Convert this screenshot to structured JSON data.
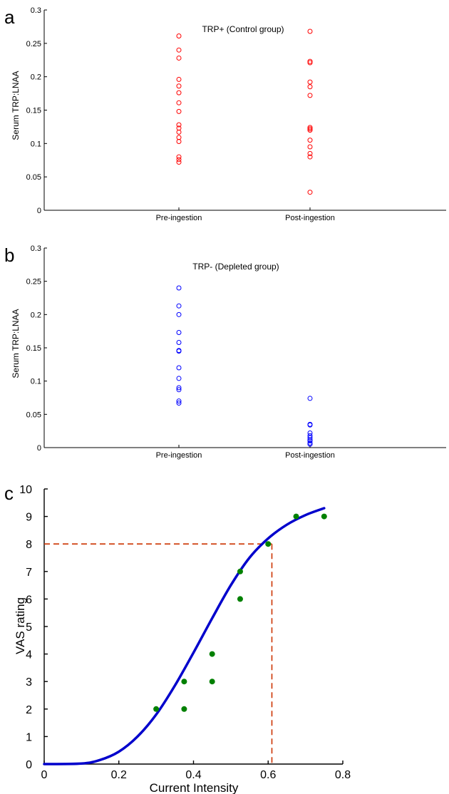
{
  "panels": [
    {
      "letter": "a"
    },
    {
      "letter": "b"
    },
    {
      "letter": "c"
    }
  ],
  "chart_data": [
    {
      "type": "scatter",
      "title": "TRP+ (Control group)",
      "xlabel": "",
      "ylabel": "Serum TRP:LNAA",
      "categories": [
        "Pre-ingestion",
        "Post-ingestion"
      ],
      "ylim": [
        0,
        0.3
      ],
      "yticks": [
        "0",
        "0.05",
        "0.1",
        "0.15",
        "0.2",
        "0.25",
        "0.3"
      ],
      "marker_color": "#ff0000",
      "series": [
        {
          "category": "Pre-ingestion",
          "values": [
            0.261,
            0.24,
            0.228,
            0.196,
            0.186,
            0.176,
            0.161,
            0.148,
            0.128,
            0.123,
            0.117,
            0.109,
            0.103,
            0.08,
            0.076,
            0.072
          ]
        },
        {
          "category": "Post-ingestion",
          "values": [
            0.268,
            0.223,
            0.221,
            0.192,
            0.185,
            0.172,
            0.124,
            0.122,
            0.12,
            0.105,
            0.095,
            0.085,
            0.08,
            0.027
          ]
        }
      ]
    },
    {
      "type": "scatter",
      "title": "TRP- (Depleted group)",
      "xlabel": "",
      "ylabel": "Serum TRP:LNAA",
      "categories": [
        "Pre-ingestion",
        "Post-ingestion"
      ],
      "ylim": [
        0,
        0.3
      ],
      "yticks": [
        "0",
        "0.05",
        "0.1",
        "0.15",
        "0.2",
        "0.25",
        "0.3"
      ],
      "marker_color": "#0000ff",
      "series": [
        {
          "category": "Pre-ingestion",
          "values": [
            0.24,
            0.213,
            0.2,
            0.173,
            0.158,
            0.146,
            0.145,
            0.12,
            0.104,
            0.09,
            0.087,
            0.07,
            0.067
          ]
        },
        {
          "category": "Post-ingestion",
          "values": [
            0.074,
            0.035,
            0.034,
            0.022,
            0.018,
            0.015,
            0.012,
            0.01,
            0.007,
            0.005
          ]
        }
      ]
    },
    {
      "type": "scatter",
      "title": "",
      "xlabel": "Current Intensity",
      "ylabel": "VAS rating",
      "xlim": [
        0,
        0.8
      ],
      "ylim": [
        0,
        10
      ],
      "xticks": [
        "0",
        "0.2",
        "0.4",
        "0.6",
        "0.8"
      ],
      "yticks": [
        "0",
        "1",
        "2",
        "3",
        "4",
        "5",
        "6",
        "7",
        "8",
        "9",
        "10"
      ],
      "points_color": "#008000",
      "curve_color": "#0000cc",
      "reference_color": "#cc3300",
      "points": [
        {
          "x": 0.3,
          "y": 2
        },
        {
          "x": 0.375,
          "y": 2
        },
        {
          "x": 0.375,
          "y": 3
        },
        {
          "x": 0.45,
          "y": 3
        },
        {
          "x": 0.45,
          "y": 4
        },
        {
          "x": 0.525,
          "y": 6
        },
        {
          "x": 0.525,
          "y": 7
        },
        {
          "x": 0.6,
          "y": 8
        },
        {
          "x": 0.675,
          "y": 9
        },
        {
          "x": 0.75,
          "y": 9
        }
      ],
      "fit_curve": {
        "x": [
          0,
          0.1,
          0.15,
          0.2,
          0.25,
          0.3,
          0.35,
          0.4,
          0.45,
          0.5,
          0.55,
          0.6,
          0.65,
          0.7,
          0.75
        ],
        "y": [
          0,
          0.02,
          0.15,
          0.45,
          1.0,
          1.8,
          2.85,
          4.05,
          5.3,
          6.5,
          7.5,
          8.2,
          8.7,
          9.05,
          9.3
        ]
      },
      "reference_lines": {
        "x": 0.61,
        "y": 8
      }
    }
  ]
}
